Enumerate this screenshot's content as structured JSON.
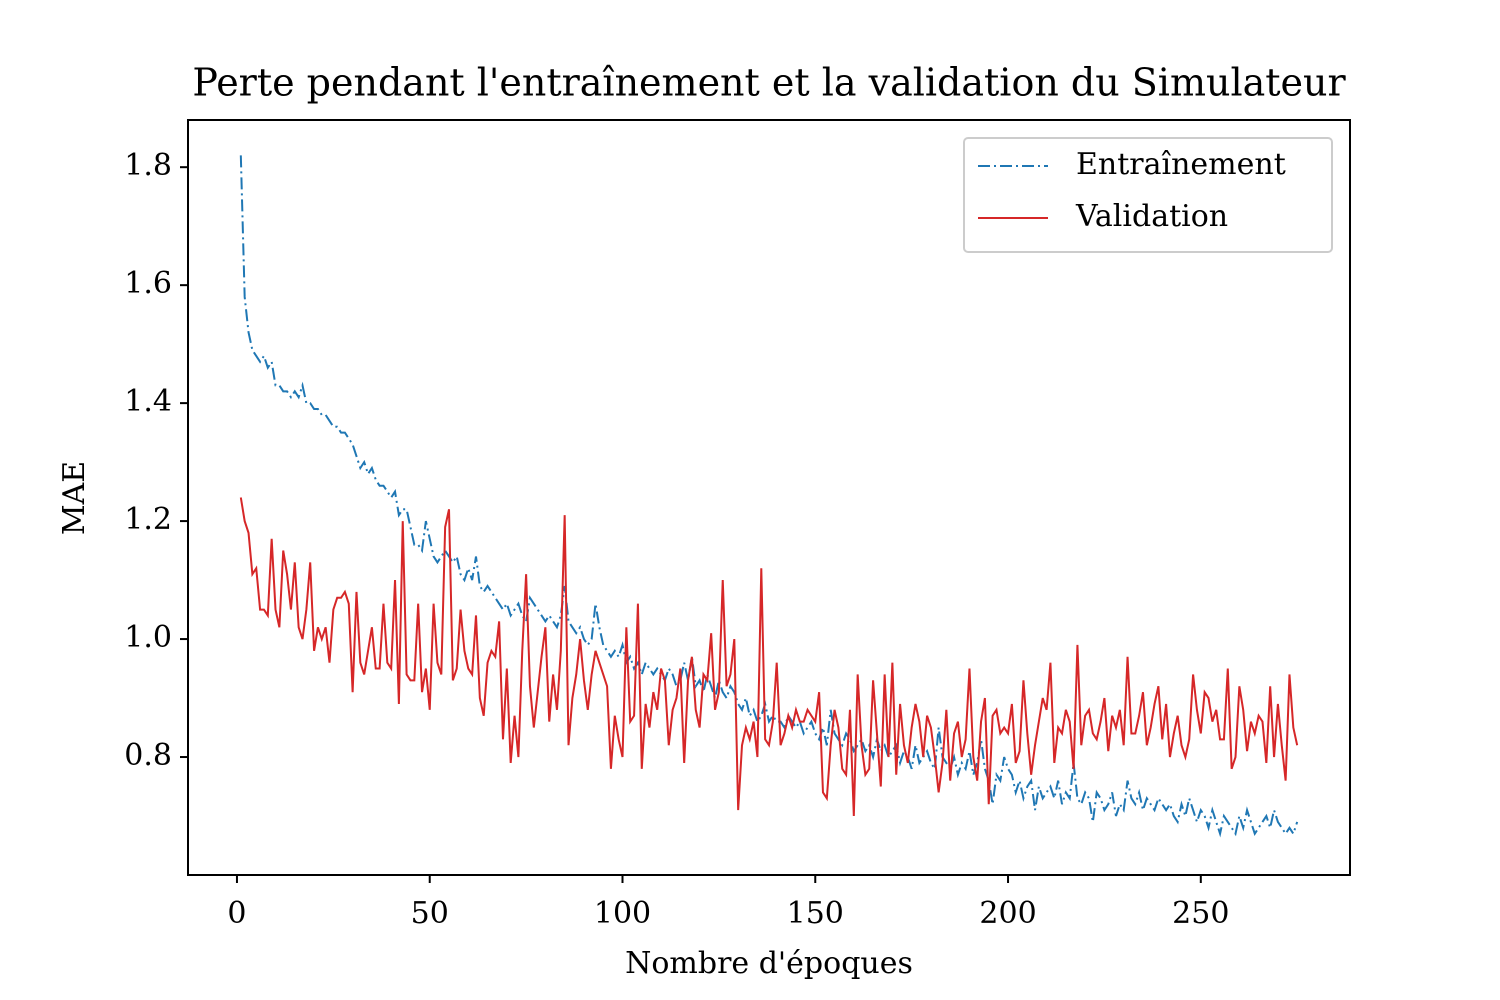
{
  "chart_data": {
    "type": "line",
    "title": "Perte pendant l'entraînement et la validation du Simulateur",
    "xlabel": "Nombre d'époques",
    "ylabel": "MAE",
    "xlim": [
      -12.7,
      288.7
    ],
    "ylim": [
      0.6,
      1.88
    ],
    "xticks": [
      0,
      50,
      100,
      150,
      200,
      250
    ],
    "yticks": [
      0.8,
      {
        "value": 1,
        "label": "1.0"
      },
      1.2,
      1.4,
      1.6,
      1.8
    ],
    "grid": false,
    "legend": "upper right",
    "x": [
      1,
      2,
      3,
      4,
      5,
      6,
      7,
      8,
      9,
      10,
      11,
      12,
      13,
      14,
      15,
      16,
      17,
      18,
      19,
      20,
      21,
      22,
      23,
      24,
      25,
      26,
      27,
      28,
      29,
      30,
      31,
      32,
      33,
      34,
      35,
      36,
      37,
      38,
      39,
      40,
      41,
      42,
      43,
      44,
      45,
      46,
      47,
      48,
      49,
      50,
      51,
      52,
      53,
      54,
      55,
      56,
      57,
      58,
      59,
      60,
      61,
      62,
      63,
      64,
      65,
      66,
      67,
      68,
      69,
      70,
      71,
      72,
      73,
      74,
      75,
      76,
      77,
      78,
      79,
      80,
      81,
      82,
      83,
      84,
      85,
      86,
      87,
      88,
      89,
      90,
      91,
      92,
      93,
      94,
      95,
      96,
      97,
      98,
      99,
      100,
      101,
      102,
      103,
      104,
      105,
      106,
      107,
      108,
      109,
      110,
      111,
      112,
      113,
      114,
      115,
      116,
      117,
      118,
      119,
      120,
      121,
      122,
      123,
      124,
      125,
      126,
      127,
      128,
      129,
      130,
      131,
      132,
      133,
      134,
      135,
      136,
      137,
      138,
      139,
      140,
      141,
      142,
      143,
      144,
      145,
      146,
      147,
      148,
      149,
      150,
      151,
      152,
      153,
      154,
      155,
      156,
      157,
      158,
      159,
      160,
      161,
      162,
      163,
      164,
      165,
      166,
      167,
      168,
      169,
      170,
      171,
      172,
      173,
      174,
      175,
      176,
      177,
      178,
      179,
      180,
      181,
      182,
      183,
      184,
      185,
      186,
      187,
      188,
      189,
      190,
      191,
      192,
      193,
      194,
      195,
      196,
      197,
      198,
      199,
      200,
      201,
      202,
      203,
      204,
      205,
      206,
      207,
      208,
      209,
      210,
      211,
      212,
      213,
      214,
      215,
      216,
      217,
      218,
      219,
      220,
      221,
      222,
      223,
      224,
      225,
      226,
      227,
      228,
      229,
      230,
      231,
      232,
      233,
      234,
      235,
      236,
      237,
      238,
      239,
      240,
      241,
      242,
      243,
      244,
      245,
      246,
      247,
      248,
      249,
      250,
      251,
      252,
      253,
      254,
      255,
      256,
      257,
      258,
      259,
      260,
      261,
      262,
      263,
      264,
      265,
      266,
      267,
      268,
      269,
      270,
      271,
      272,
      273,
      274,
      275
    ],
    "series": [
      {
        "name": "Entraînement",
        "color": "#1f77b4",
        "linestyle": "dashdot",
        "values": [
          1.82,
          1.58,
          1.52,
          1.49,
          1.48,
          1.47,
          1.48,
          1.46,
          1.47,
          1.43,
          1.43,
          1.42,
          1.42,
          1.41,
          1.42,
          1.41,
          1.43,
          1.4,
          1.4,
          1.39,
          1.39,
          1.38,
          1.38,
          1.37,
          1.36,
          1.36,
          1.35,
          1.35,
          1.34,
          1.33,
          1.31,
          1.29,
          1.3,
          1.28,
          1.29,
          1.27,
          1.26,
          1.26,
          1.25,
          1.24,
          1.25,
          1.21,
          1.22,
          1.22,
          1.19,
          1.16,
          1.16,
          1.15,
          1.2,
          1.17,
          1.14,
          1.13,
          1.14,
          1.15,
          1.14,
          1.13,
          1.14,
          1.11,
          1.1,
          1.12,
          1.1,
          1.14,
          1.09,
          1.08,
          1.09,
          1.08,
          1.07,
          1.06,
          1.05,
          1.06,
          1.04,
          1.05,
          1.06,
          1.04,
          1.03,
          1.07,
          1.06,
          1.05,
          1.04,
          1.03,
          1.04,
          1.03,
          1.02,
          1.04,
          1.09,
          1.03,
          1.02,
          1.01,
          1.02,
          1.0,
          0.99,
          1.0,
          1.06,
          1.02,
          0.99,
          0.98,
          0.97,
          0.98,
          0.97,
          0.99,
          0.96,
          0.97,
          0.95,
          0.96,
          0.94,
          0.96,
          0.95,
          0.94,
          0.95,
          0.94,
          0.93,
          0.95,
          0.94,
          0.92,
          0.93,
          0.96,
          0.93,
          0.97,
          0.92,
          0.93,
          0.91,
          0.94,
          0.92,
          0.9,
          0.93,
          0.91,
          0.9,
          0.92,
          0.91,
          0.89,
          0.88,
          0.9,
          0.87,
          0.88,
          0.86,
          0.87,
          0.89,
          0.86,
          0.87,
          0.86,
          0.86,
          0.85,
          0.87,
          0.86,
          0.85,
          0.86,
          0.84,
          0.85,
          0.86,
          0.84,
          0.83,
          0.85,
          0.82,
          0.88,
          0.84,
          0.83,
          0.82,
          0.84,
          0.83,
          0.81,
          0.82,
          0.83,
          0.81,
          0.82,
          0.8,
          0.83,
          0.81,
          0.82,
          0.8,
          0.81,
          0.82,
          0.79,
          0.81,
          0.8,
          0.78,
          0.82,
          0.79,
          0.8,
          0.81,
          0.79,
          0.78,
          0.85,
          0.8,
          0.79,
          0.78,
          0.8,
          0.77,
          0.79,
          0.78,
          0.81,
          0.77,
          0.79,
          0.83,
          0.78,
          0.76,
          0.72,
          0.77,
          0.76,
          0.8,
          0.78,
          0.77,
          0.74,
          0.76,
          0.73,
          0.75,
          0.76,
          0.71,
          0.75,
          0.73,
          0.74,
          0.75,
          0.73,
          0.76,
          0.72,
          0.74,
          0.73,
          0.79,
          0.73,
          0.72,
          0.74,
          0.73,
          0.69,
          0.74,
          0.73,
          0.71,
          0.72,
          0.74,
          0.7,
          0.72,
          0.71,
          0.76,
          0.73,
          0.72,
          0.74,
          0.71,
          0.73,
          0.72,
          0.71,
          0.73,
          0.72,
          0.71,
          0.72,
          0.7,
          0.69,
          0.72,
          0.7,
          0.73,
          0.71,
          0.69,
          0.71,
          0.7,
          0.68,
          0.71,
          0.69,
          0.67,
          0.7,
          0.69,
          0.68,
          0.67,
          0.7,
          0.68,
          0.71,
          0.69,
          0.67,
          0.68,
          0.69,
          0.7,
          0.68,
          0.71,
          0.69,
          0.68,
          0.67,
          0.68,
          0.67,
          0.69
        ]
      },
      {
        "name": "Validation",
        "color": "#d62728",
        "linestyle": "solid",
        "values": [
          1.24,
          1.2,
          1.18,
          1.11,
          1.12,
          1.05,
          1.05,
          1.04,
          1.17,
          1.05,
          1.02,
          1.15,
          1.11,
          1.05,
          1.13,
          1.02,
          1.0,
          1.05,
          1.13,
          0.98,
          1.02,
          1.0,
          1.02,
          0.96,
          1.05,
          1.07,
          1.07,
          1.08,
          1.06,
          0.91,
          1.08,
          0.96,
          0.94,
          0.98,
          1.02,
          0.95,
          0.95,
          1.06,
          0.96,
          0.95,
          1.1,
          0.89,
          1.2,
          0.94,
          0.93,
          0.93,
          1.06,
          0.91,
          0.95,
          0.88,
          1.06,
          0.96,
          0.94,
          1.19,
          1.22,
          0.93,
          0.95,
          1.05,
          0.98,
          0.95,
          0.94,
          1.04,
          0.9,
          0.87,
          0.96,
          0.98,
          0.97,
          1.03,
          0.83,
          0.95,
          0.79,
          0.87,
          0.8,
          0.98,
          1.11,
          0.92,
          0.85,
          0.91,
          0.97,
          1.02,
          0.86,
          0.94,
          0.88,
          0.98,
          1.21,
          0.82,
          0.9,
          0.94,
          1.0,
          0.93,
          0.88,
          0.94,
          0.98,
          0.96,
          0.94,
          0.92,
          0.78,
          0.87,
          0.83,
          0.8,
          1.02,
          0.86,
          0.87,
          1.06,
          0.78,
          0.89,
          0.85,
          0.91,
          0.88,
          0.95,
          0.93,
          0.82,
          0.88,
          0.9,
          0.95,
          0.79,
          0.93,
          0.97,
          0.88,
          0.85,
          0.94,
          0.93,
          1.01,
          0.88,
          0.91,
          1.1,
          0.92,
          0.94,
          1.0,
          0.71,
          0.82,
          0.85,
          0.83,
          0.86,
          0.8,
          1.12,
          0.83,
          0.82,
          0.86,
          0.96,
          0.82,
          0.84,
          0.87,
          0.85,
          0.88,
          0.86,
          0.86,
          0.88,
          0.87,
          0.86,
          0.91,
          0.74,
          0.73,
          0.82,
          0.88,
          0.85,
          0.78,
          0.77,
          0.88,
          0.7,
          0.94,
          0.82,
          0.77,
          0.78,
          0.93,
          0.84,
          0.75,
          0.94,
          0.8,
          0.96,
          0.77,
          0.89,
          0.82,
          0.79,
          0.85,
          0.89,
          0.86,
          0.8,
          0.87,
          0.85,
          0.8,
          0.74,
          0.79,
          0.88,
          0.76,
          0.84,
          0.86,
          0.8,
          0.83,
          0.95,
          0.8,
          0.76,
          0.86,
          0.9,
          0.72,
          0.87,
          0.88,
          0.84,
          0.85,
          0.84,
          0.89,
          0.79,
          0.81,
          0.93,
          0.84,
          0.77,
          0.82,
          0.86,
          0.9,
          0.88,
          0.96,
          0.79,
          0.85,
          0.84,
          0.88,
          0.86,
          0.78,
          0.99,
          0.82,
          0.87,
          0.88,
          0.84,
          0.83,
          0.86,
          0.9,
          0.81,
          0.87,
          0.85,
          0.88,
          0.82,
          0.97,
          0.84,
          0.84,
          0.87,
          0.91,
          0.82,
          0.85,
          0.89,
          0.92,
          0.83,
          0.89,
          0.8,
          0.84,
          0.87,
          0.82,
          0.8,
          0.83,
          0.94,
          0.88,
          0.84,
          0.91,
          0.9,
          0.86,
          0.88,
          0.83,
          0.83,
          0.95,
          0.78,
          0.8,
          0.92,
          0.88,
          0.81,
          0.86,
          0.84,
          0.87,
          0.86,
          0.79,
          0.92,
          0.8,
          0.89,
          0.82,
          0.76,
          0.94,
          0.85,
          0.82
        ]
      }
    ]
  }
}
